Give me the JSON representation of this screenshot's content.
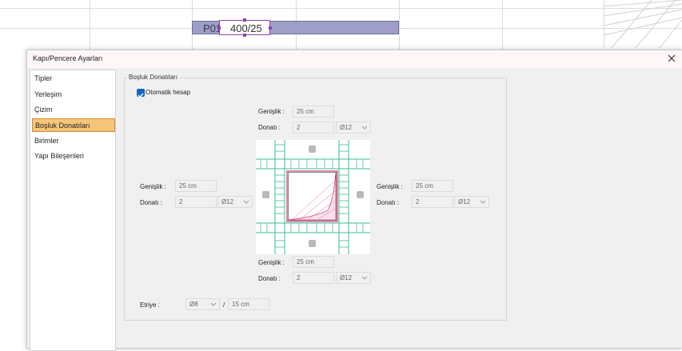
{
  "background": {
    "beam_code": "P01",
    "beam_size": "400/25"
  },
  "dialog": {
    "title": "Kapı/Pencere Ayarları",
    "close_icon": "close-icon",
    "nav": [
      {
        "label": "Tipler",
        "active": false
      },
      {
        "label": "Yerleşim",
        "active": false
      },
      {
        "label": "Çizim",
        "active": false
      },
      {
        "label": "Boşluk Donatıları",
        "active": true
      },
      {
        "label": "Birimler",
        "active": false
      },
      {
        "label": "Yapı Bileşenleri",
        "active": false
      }
    ],
    "group_title": "Boşluk Donatıları",
    "auto_checkbox": {
      "label": "Otomatik hesap",
      "checked": true
    },
    "top": {
      "width_label": "Genişlik :",
      "width_value": "25 cm",
      "rebar_label": "Donatı :",
      "rebar_count": "2",
      "rebar_dia": "Ø12"
    },
    "left": {
      "width_label": "Genişlik :",
      "width_value": "25 cm",
      "rebar_label": "Donatı :",
      "rebar_count": "2",
      "rebar_dia": "Ø12"
    },
    "right": {
      "width_label": "Genişlik :",
      "width_value": "25 cm",
      "rebar_label": "Donatı :",
      "rebar_count": "2",
      "rebar_dia": "Ø12"
    },
    "bottom": {
      "width_label": "Genişlik :",
      "width_value": "25 cm",
      "rebar_label": "Donatı :",
      "rebar_count": "2",
      "rebar_dia": "Ø12"
    },
    "stirrup": {
      "label": "Etriye :",
      "dia": "Ø8",
      "sep": "/",
      "spacing": "15 cm"
    },
    "colors": {
      "accent": "#1565c0",
      "active_item": "#f5c57a",
      "rebar": "#3dbd97",
      "opening": "#c2185b"
    }
  }
}
